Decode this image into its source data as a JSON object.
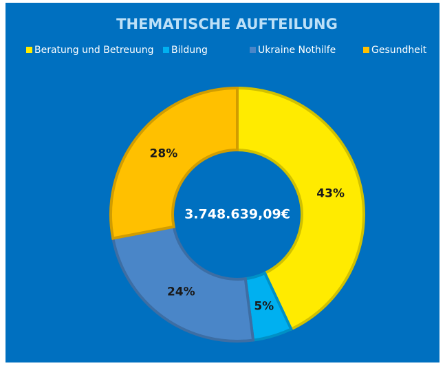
{
  "chart_data": {
    "type": "donut",
    "title": "THEMATISCHE AUFTEILUNG",
    "center_label": "3.748.639,09€",
    "categories": [
      "Beratung und Betreuung",
      "Bildung",
      "Ukraine Nothilfe",
      "Gesundheit"
    ],
    "values": [
      43,
      5,
      24,
      28
    ],
    "value_labels": [
      "43%",
      "5%",
      "24%",
      "28%"
    ],
    "colors": [
      "#FFEB00",
      "#00B0F0",
      "#4A86C8",
      "#FFC000"
    ],
    "legend": "top"
  }
}
